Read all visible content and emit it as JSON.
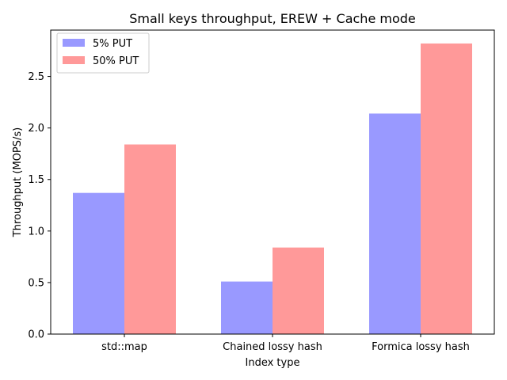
{
  "chart_data": {
    "type": "bar",
    "title": "Small keys throughput, EREW + Cache mode",
    "xlabel": "Index type",
    "ylabel": "Throughput (MOPS/s)",
    "categories": [
      "std::map",
      "Chained lossy hash",
      "Formica lossy hash"
    ],
    "series": [
      {
        "name": "5% PUT",
        "values": [
          1.37,
          0.51,
          2.14
        ],
        "color": "#9999ff"
      },
      {
        "name": "50% PUT",
        "values": [
          1.84,
          0.84,
          2.82
        ],
        "color": "#ff9999"
      }
    ],
    "ylim": [
      0,
      2.95
    ],
    "yticks": [
      0.0,
      0.5,
      1.0,
      1.5,
      2.0,
      2.5
    ],
    "ytick_labels": [
      "0.0",
      "0.5",
      "1.0",
      "1.5",
      "2.0",
      "2.5"
    ],
    "grid": false,
    "legend_position": "top-left"
  }
}
